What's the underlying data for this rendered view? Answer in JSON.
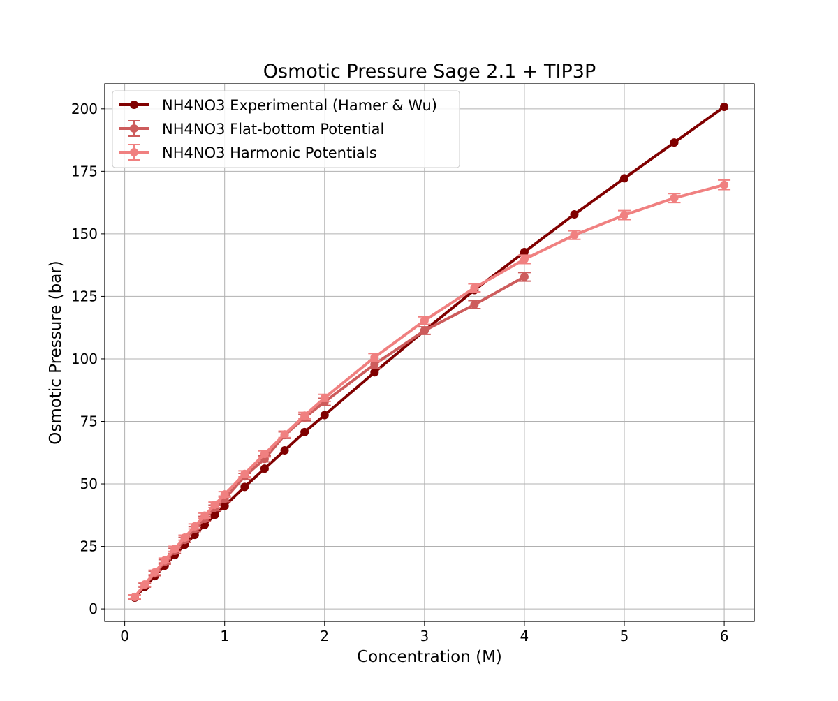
{
  "chart_data": {
    "type": "line",
    "title": "Osmotic Pressure Sage 2.1 + TIP3P",
    "xlabel": "Concentration (M)",
    "ylabel": "Osmotic Pressure (bar)",
    "xlim": [
      -0.2,
      6.3
    ],
    "ylim": [
      -5,
      210
    ],
    "xticks": [
      0,
      1,
      2,
      3,
      4,
      5,
      6
    ],
    "xtick_labels": [
      "0",
      "1",
      "2",
      "3",
      "4",
      "5",
      "6"
    ],
    "yticks": [
      0,
      25,
      50,
      75,
      100,
      125,
      150,
      175,
      200
    ],
    "ytick_labels": [
      "0",
      "25",
      "50",
      "75",
      "100",
      "125",
      "150",
      "175",
      "200"
    ],
    "grid": true,
    "legend_position": "top-left",
    "series": [
      {
        "name": "NH4NO3 Experimental (Hamer & Wu)",
        "color": "#800000",
        "error_bars": false,
        "x": [
          0.1,
          0.2,
          0.3,
          0.4,
          0.5,
          0.6,
          0.7,
          0.8,
          0.9,
          1.0,
          1.2,
          1.4,
          1.6,
          1.8,
          2.0,
          2.5,
          3.0,
          3.5,
          4.0,
          4.5,
          5.0,
          5.5,
          6.0
        ],
        "y": [
          4.5,
          8.8,
          13.1,
          17.3,
          21.5,
          25.6,
          29.6,
          33.6,
          37.5,
          41.2,
          48.8,
          56.1,
          63.4,
          70.7,
          77.5,
          94.6,
          111.3,
          127.5,
          142.7,
          157.8,
          172.2,
          186.5,
          200.8
        ]
      },
      {
        "name": "NH4NO3 Flat-bottom Potential",
        "color": "#cd5c5c",
        "error_bars": true,
        "x": [
          0.1,
          0.2,
          0.3,
          0.4,
          0.5,
          0.6,
          0.7,
          0.8,
          0.9,
          1.0,
          1.2,
          1.4,
          1.6,
          1.8,
          2.0,
          2.5,
          3.0,
          3.5,
          4.0
        ],
        "y": [
          4.7,
          9.5,
          14.2,
          18.8,
          23.2,
          27.6,
          31.9,
          36.0,
          40.4,
          44.0,
          53.0,
          60.0,
          69.5,
          76.5,
          82.8,
          97.8,
          111.3,
          121.7,
          132.8
        ],
        "err": [
          0.8,
          0.8,
          0.9,
          0.9,
          1.0,
          1.0,
          1.0,
          1.0,
          1.1,
          1.1,
          1.2,
          1.2,
          1.3,
          1.3,
          1.4,
          1.5,
          1.5,
          1.6,
          1.7
        ]
      },
      {
        "name": "NH4NO3 Harmonic Potentials",
        "color": "#f08080",
        "error_bars": true,
        "x": [
          0.1,
          0.2,
          0.3,
          0.4,
          0.5,
          0.6,
          0.7,
          0.8,
          0.9,
          1.0,
          1.2,
          1.4,
          1.6,
          1.8,
          2.0,
          2.5,
          3.0,
          3.5,
          4.0,
          4.5,
          5.0,
          5.5,
          6.0
        ],
        "y": [
          4.8,
          9.8,
          14.6,
          19.4,
          24.0,
          28.5,
          33.0,
          37.3,
          41.6,
          45.8,
          54.0,
          62.0,
          69.8,
          77.3,
          84.4,
          100.6,
          115.3,
          128.4,
          139.8,
          149.5,
          157.5,
          164.3,
          169.6
        ],
        "err": [
          0.8,
          0.8,
          0.9,
          0.9,
          1.0,
          1.0,
          1.0,
          1.0,
          1.1,
          1.1,
          1.2,
          1.2,
          1.3,
          1.3,
          1.4,
          1.5,
          1.5,
          1.6,
          1.7,
          1.7,
          1.8,
          1.8,
          1.9
        ]
      }
    ]
  }
}
